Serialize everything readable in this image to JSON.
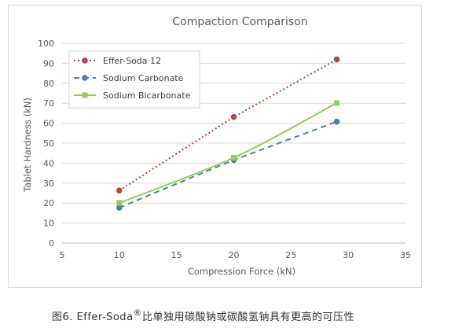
{
  "chart_data": {
    "type": "line",
    "title": "Compaction Comparison",
    "xlabel": "Compression Force (kN)",
    "ylabel": "Tablet Hardness (kN)",
    "xlim": [
      5,
      35
    ],
    "ylim": [
      0,
      100
    ],
    "xticks": [
      "5",
      "10",
      "15",
      "20",
      "25",
      "30",
      "35"
    ],
    "yticks": [
      "0",
      "10",
      "20",
      "30",
      "40",
      "50",
      "60",
      "70",
      "80",
      "90",
      "100"
    ],
    "grid": "horizontal",
    "legend_position": "top-left",
    "series": [
      {
        "name": "Effer-Soda 12",
        "color": "#b5453f",
        "dash": "dotted",
        "marker": "circle",
        "smooth": false,
        "x": [
          10,
          20,
          29
        ],
        "y": [
          26.3,
          63.1,
          91.9
        ]
      },
      {
        "name": "Sodium Carbonate",
        "color": "#4a7ebb",
        "dash": "dashed",
        "marker": "circle",
        "smooth": false,
        "x": [
          10,
          20,
          29
        ],
        "y": [
          17.7,
          41.6,
          60.8
        ]
      },
      {
        "name": "Sodium Bicarbonate",
        "color": "#92d050",
        "dash": "solid",
        "marker": "square",
        "smooth": true,
        "x": [
          10,
          20,
          29
        ],
        "y": [
          20.1,
          42.7,
          70.1
        ]
      }
    ]
  },
  "caption": {
    "prefix": "图6. Effer-Soda",
    "mark": "®",
    "suffix": "比单独用碳酸钠或碳酸氢钠具有更高的可压性"
  }
}
